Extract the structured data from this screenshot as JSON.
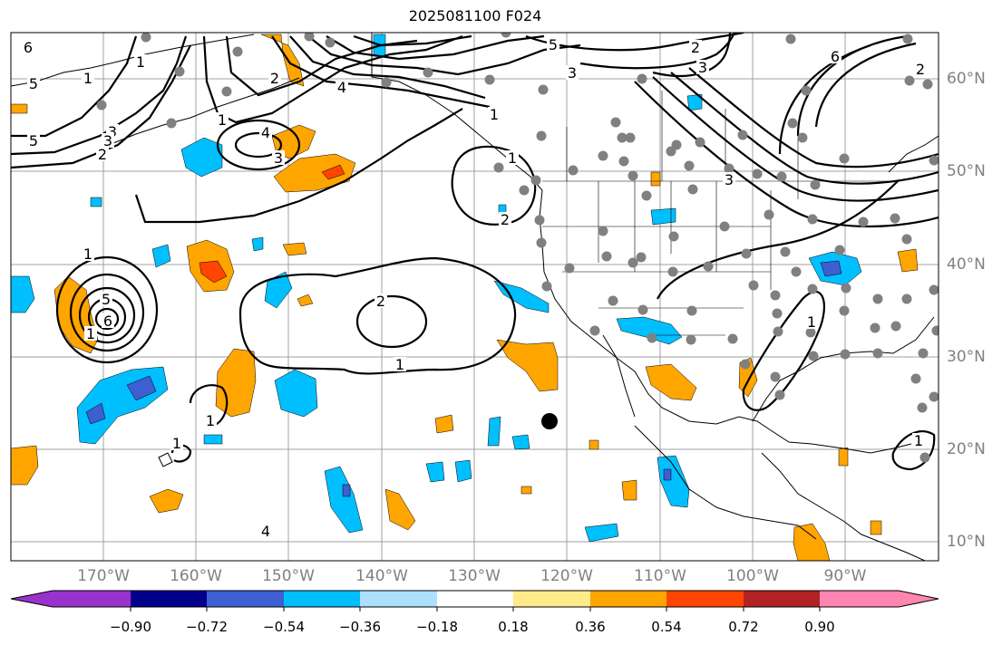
{
  "title": "2025081100 F024",
  "map": {
    "lon_labels": [
      "170°W",
      "160°W",
      "150°W",
      "140°W",
      "130°W",
      "120°W",
      "110°W",
      "100°W",
      "90°W"
    ],
    "lat_labels": [
      "60°N",
      "50°N",
      "40°N",
      "30°N",
      "20°N",
      "10°N"
    ],
    "contour_labels": [
      "5",
      "5",
      "5",
      "3",
      "3",
      "2",
      "2",
      "1",
      "1",
      "4",
      "3",
      "4",
      "1",
      "2",
      "2",
      "1",
      "1",
      "1",
      "1",
      "1",
      "3",
      "5",
      "6",
      "2",
      "1",
      "1",
      "2",
      "1",
      "6",
      "3",
      "3",
      "4",
      "6",
      "1"
    ],
    "colors": {
      "orange": "#ffa500",
      "orange_red": "#ff4500",
      "deep_sky_blue": "#00bfff",
      "royal_blue": "#3d5fd1",
      "station_gray": "#808080",
      "marker_black": "#000000"
    }
  },
  "colorbar": {
    "ticks": [
      "−0.90",
      "−0.72",
      "−0.54",
      "−0.36",
      "−0.18",
      "0.18",
      "0.36",
      "0.54",
      "0.72",
      "0.90"
    ],
    "colors": [
      "#9932cc",
      "#00008b",
      "#3d5fd1",
      "#00bfff",
      "#ade0ff",
      "#ffffff",
      "#ffeb8a",
      "#ffa500",
      "#ff4500",
      "#b22222",
      "#ff86b0"
    ]
  }
}
